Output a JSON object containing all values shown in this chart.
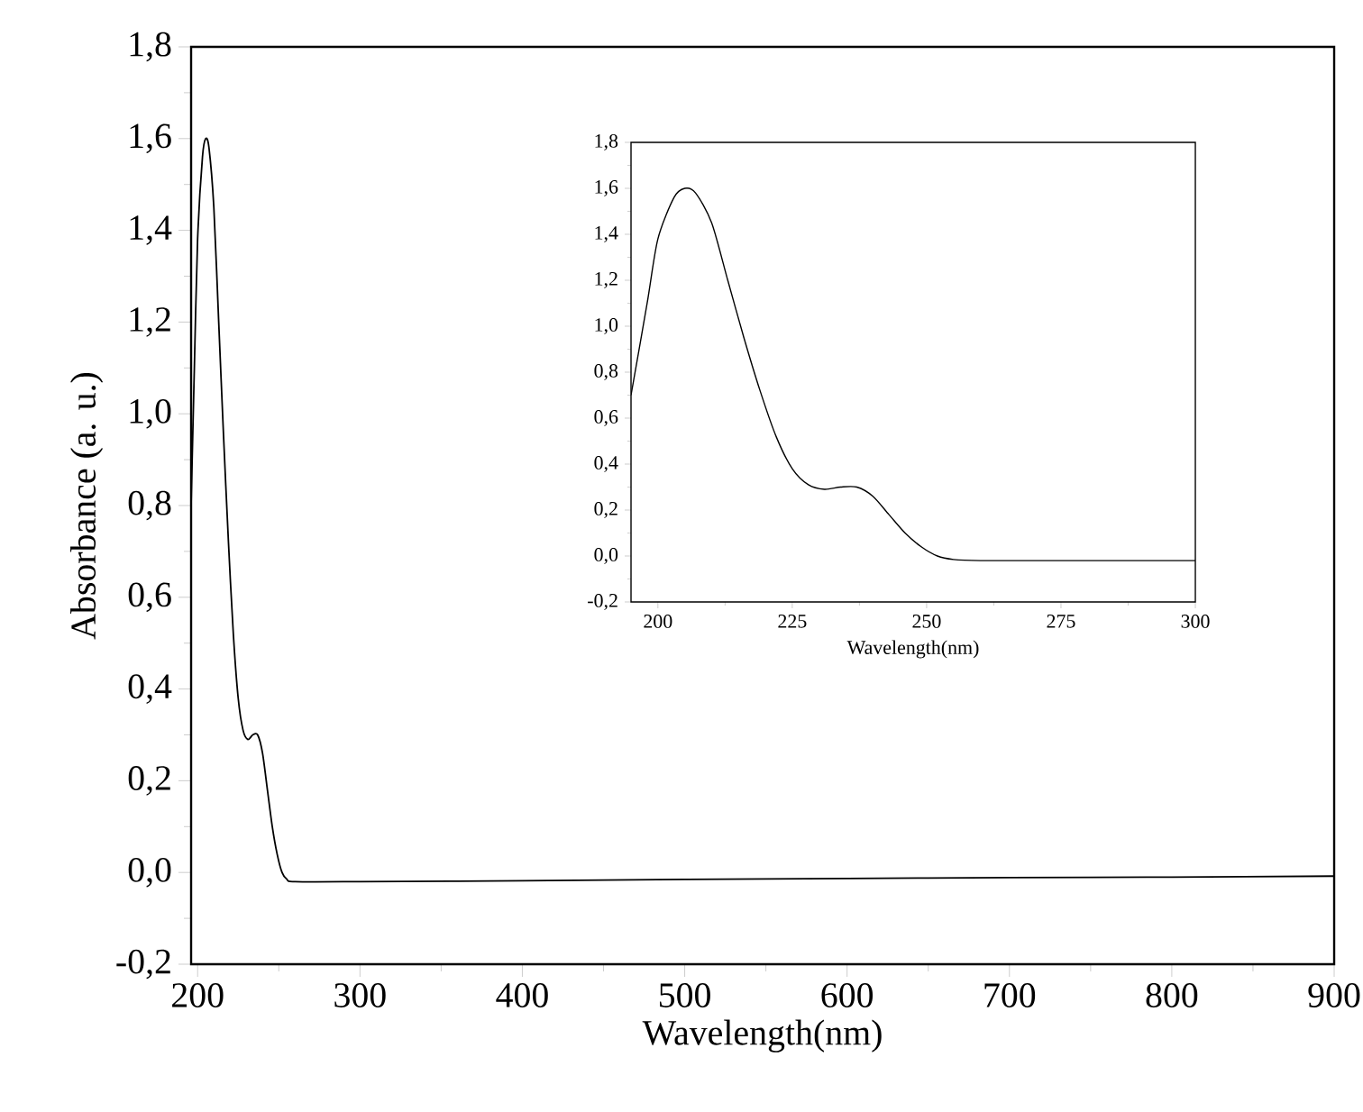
{
  "chart_data": [
    {
      "type": "line",
      "xlabel": "Wavelength(nm)",
      "ylabel": "Absorbance (a. u.)",
      "xlim": [
        196,
        900
      ],
      "ylim": [
        -0.2,
        1.8
      ],
      "xticks": [
        200,
        300,
        400,
        500,
        600,
        700,
        800,
        900
      ],
      "yticks": [
        {
          "value": -0.2,
          "label": "-0,2"
        },
        {
          "value": 0.0,
          "label": "0,0"
        },
        {
          "value": 0.2,
          "label": "0,2"
        },
        {
          "value": 0.4,
          "label": "0,4"
        },
        {
          "value": 0.6,
          "label": "0,6"
        },
        {
          "value": 0.8,
          "label": "0,8"
        },
        {
          "value": 1.0,
          "label": "1,0"
        },
        {
          "value": 1.2,
          "label": "1,2"
        },
        {
          "value": 1.4,
          "label": "1,4"
        },
        {
          "value": 1.6,
          "label": "1,6"
        },
        {
          "value": 1.8,
          "label": "1,8"
        }
      ],
      "series": [
        {
          "color": "#000000",
          "x": [
            196,
            198,
            200,
            203,
            205,
            207,
            210,
            213,
            216,
            219,
            222,
            225,
            228,
            231,
            234,
            237,
            240,
            243,
            246,
            249,
            252,
            255,
            260,
            300,
            400,
            500,
            600,
            700,
            800,
            900
          ],
          "values": [
            0.8,
            1.1,
            1.38,
            1.56,
            1.6,
            1.58,
            1.45,
            1.2,
            0.95,
            0.72,
            0.52,
            0.38,
            0.31,
            0.29,
            0.3,
            0.3,
            0.26,
            0.18,
            0.1,
            0.04,
            0.0,
            -0.015,
            -0.02,
            -0.02,
            -0.018,
            -0.015,
            -0.013,
            -0.011,
            -0.01,
            -0.008
          ]
        }
      ]
    },
    {
      "type": "line",
      "xlabel": "Wavelength(nm)",
      "xlim": [
        195,
        300
      ],
      "ylim": [
        -0.2,
        1.8
      ],
      "xticks": [
        200,
        225,
        250,
        275,
        300
      ],
      "yticks": [
        {
          "value": -0.2,
          "label": "-0,2"
        },
        {
          "value": 0.0,
          "label": "0,0"
        },
        {
          "value": 0.2,
          "label": "0,2"
        },
        {
          "value": 0.4,
          "label": "0,4"
        },
        {
          "value": 0.6,
          "label": "0,6"
        },
        {
          "value": 0.8,
          "label": "0,8"
        },
        {
          "value": 1.0,
          "label": "1,0"
        },
        {
          "value": 1.2,
          "label": "1,2"
        },
        {
          "value": 1.4,
          "label": "1,4"
        },
        {
          "value": 1.6,
          "label": "1,6"
        },
        {
          "value": 1.8,
          "label": "1,8"
        }
      ],
      "series": [
        {
          "color": "#000000",
          "x": [
            195,
            198,
            200,
            203,
            205,
            207,
            210,
            213,
            216,
            219,
            222,
            225,
            228,
            231,
            234,
            237,
            240,
            243,
            246,
            249,
            252,
            255,
            260,
            270,
            280,
            290,
            300
          ],
          "values": [
            0.7,
            1.1,
            1.38,
            1.56,
            1.6,
            1.58,
            1.45,
            1.2,
            0.95,
            0.72,
            0.52,
            0.38,
            0.31,
            0.29,
            0.3,
            0.3,
            0.26,
            0.18,
            0.1,
            0.04,
            0.0,
            -0.015,
            -0.02,
            -0.02,
            -0.02,
            -0.02,
            -0.02
          ]
        }
      ]
    }
  ]
}
